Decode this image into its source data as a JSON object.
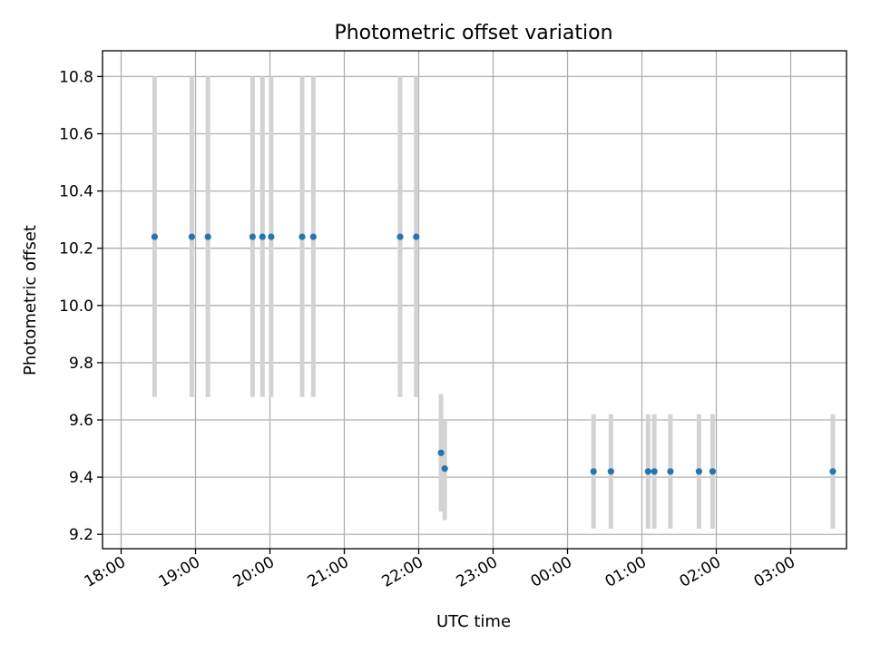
{
  "chart_data": {
    "type": "scatter",
    "title": "Photometric offset variation",
    "xlabel": "UTC time",
    "ylabel": "Photometric offset",
    "x_axis": {
      "unit": "UTC time",
      "range": [
        "17:45",
        "03:45 (+1 day)"
      ],
      "ticks": [
        "18:00",
        "19:00",
        "20:00",
        "21:00",
        "22:00",
        "23:00",
        "00:00",
        "01:00",
        "02:00",
        "03:00"
      ],
      "tick_label_rotation": "30 degrees"
    },
    "y_axis": {
      "range": [
        9.15,
        10.89
      ],
      "ticks": [
        "9.2",
        "9.4",
        "9.6",
        "9.8",
        "10.0",
        "10.2",
        "10.4",
        "10.6",
        "10.8"
      ]
    },
    "grid": true,
    "legend": "none",
    "colors": {
      "point": "#1f77b4",
      "errorbar": "#d3d3d3",
      "grid": "#b0b0b0"
    },
    "points": [
      {
        "time": "18:27",
        "y": 10.24,
        "yerr_low": 9.68,
        "yerr_high": 10.8
      },
      {
        "time": "18:57",
        "y": 10.24,
        "yerr_low": 9.68,
        "yerr_high": 10.8
      },
      {
        "time": "19:10",
        "y": 10.24,
        "yerr_low": 9.68,
        "yerr_high": 10.8
      },
      {
        "time": "19:46",
        "y": 10.24,
        "yerr_low": 9.68,
        "yerr_high": 10.8
      },
      {
        "time": "19:54",
        "y": 10.24,
        "yerr_low": 9.68,
        "yerr_high": 10.8
      },
      {
        "time": "20:01",
        "y": 10.24,
        "yerr_low": 9.68,
        "yerr_high": 10.8
      },
      {
        "time": "20:26",
        "y": 10.24,
        "yerr_low": 9.68,
        "yerr_high": 10.8
      },
      {
        "time": "20:35",
        "y": 10.24,
        "yerr_low": 9.68,
        "yerr_high": 10.8
      },
      {
        "time": "21:45",
        "y": 10.24,
        "yerr_low": 9.68,
        "yerr_high": 10.8
      },
      {
        "time": "21:58",
        "y": 10.24,
        "yerr_low": 9.68,
        "yerr_high": 10.8
      },
      {
        "time": "22:18",
        "y": 9.485,
        "yerr_low": 9.28,
        "yerr_high": 9.69
      },
      {
        "time": "22:21",
        "y": 9.43,
        "yerr_low": 9.25,
        "yerr_high": 9.6
      },
      {
        "time": "00:21",
        "y": 9.42,
        "yerr_low": 9.22,
        "yerr_high": 9.62
      },
      {
        "time": "00:35",
        "y": 9.42,
        "yerr_low": 9.22,
        "yerr_high": 9.62
      },
      {
        "time": "01:05",
        "y": 9.42,
        "yerr_low": 9.22,
        "yerr_high": 9.62
      },
      {
        "time": "01:10",
        "y": 9.42,
        "yerr_low": 9.22,
        "yerr_high": 9.62
      },
      {
        "time": "01:23",
        "y": 9.42,
        "yerr_low": 9.22,
        "yerr_high": 9.62
      },
      {
        "time": "01:46",
        "y": 9.42,
        "yerr_low": 9.22,
        "yerr_high": 9.62
      },
      {
        "time": "01:57",
        "y": 9.42,
        "yerr_low": 9.22,
        "yerr_high": 9.62
      },
      {
        "time": "03:34",
        "y": 9.42,
        "yerr_low": 9.22,
        "yerr_high": 9.62
      }
    ]
  }
}
